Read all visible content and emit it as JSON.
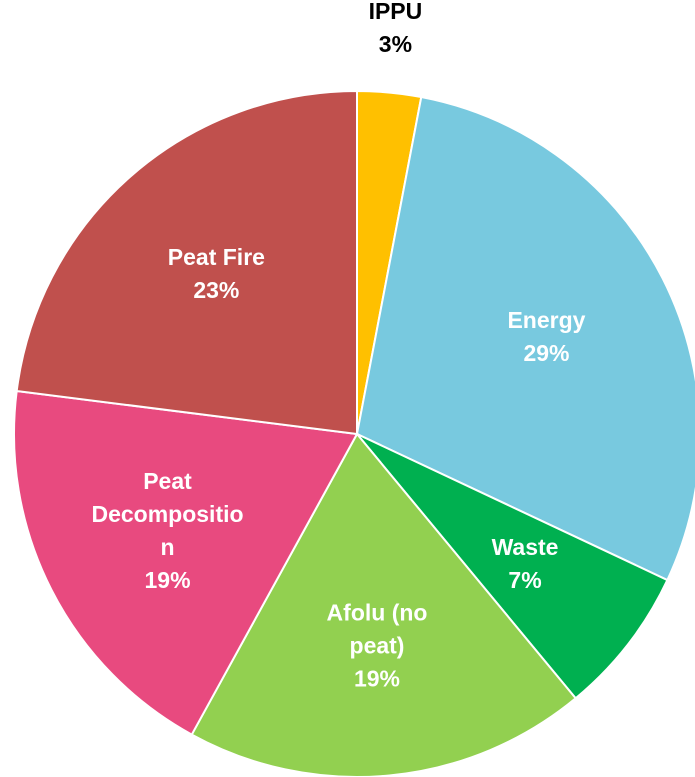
{
  "chart_data": {
    "type": "pie",
    "categories": [
      "IPPU",
      "Energy",
      "Waste",
      "Afolu (no peat)",
      "Peat Decomposition",
      "Peat Fire"
    ],
    "values": [
      3,
      29,
      7,
      19,
      19,
      23
    ],
    "value_labels": [
      "3%",
      "29%",
      "7%",
      "19%",
      "19%",
      "23%"
    ],
    "colors": [
      "#ffc000",
      "#78c9df",
      "#00b050",
      "#92d050",
      "#e84a7f",
      "#c0504d"
    ]
  }
}
